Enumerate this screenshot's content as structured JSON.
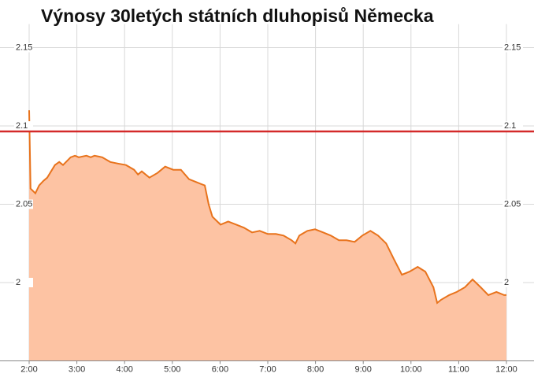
{
  "chart_data": {
    "type": "area",
    "title": "Výnosy 30letých státních dluhopisů Německa",
    "x": [
      2.0,
      2.03,
      2.13,
      2.21,
      2.3,
      2.38,
      2.54,
      2.63,
      2.71,
      2.87,
      2.96,
      3.04,
      3.2,
      3.29,
      3.37,
      3.53,
      3.7,
      3.86,
      4.03,
      4.2,
      4.28,
      4.36,
      4.52,
      4.69,
      4.85,
      5.02,
      5.18,
      5.35,
      5.51,
      5.68,
      5.76,
      5.84,
      6.01,
      6.17,
      6.34,
      6.5,
      6.67,
      6.83,
      7.0,
      7.17,
      7.33,
      7.5,
      7.58,
      7.66,
      7.83,
      7.99,
      8.16,
      8.32,
      8.49,
      8.65,
      8.82,
      8.98,
      9.15,
      9.31,
      9.48,
      9.64,
      9.81,
      9.97,
      10.14,
      10.3,
      10.47,
      10.55,
      10.63,
      10.8,
      10.96,
      11.13,
      11.29,
      11.46,
      11.62,
      11.79,
      11.95,
      12.0
    ],
    "series": [
      {
        "color": "#e8731c",
        "fill": "#fdc3a3",
        "values": [
          2.11,
          2.06,
          2.057,
          2.062,
          2.065,
          2.067,
          2.075,
          2.077,
          2.075,
          2.08,
          2.081,
          2.08,
          2.081,
          2.08,
          2.081,
          2.08,
          2.077,
          2.076,
          2.075,
          2.072,
          2.069,
          2.071,
          2.067,
          2.07,
          2.074,
          2.072,
          2.072,
          2.066,
          2.064,
          2.062,
          2.05,
          2.042,
          2.037,
          2.039,
          2.037,
          2.035,
          2.032,
          2.033,
          2.031,
          2.031,
          2.03,
          2.027,
          2.025,
          2.03,
          2.033,
          2.034,
          2.032,
          2.03,
          2.027,
          2.027,
          2.026,
          2.03,
          2.033,
          2.03,
          2.025,
          2.015,
          2.005,
          2.007,
          2.01,
          2.007,
          1.997,
          1.987,
          1.989,
          1.992,
          1.994,
          1.997,
          2.002,
          1.997,
          1.992,
          1.994,
          1.992,
          1.992
        ]
      }
    ],
    "reference_lines": [
      {
        "value": 2.0965,
        "color": "#d42a2a"
      }
    ],
    "xlim": [
      2,
      12
    ],
    "xticks": [
      {
        "value": 2,
        "label": "2:00"
      },
      {
        "value": 3,
        "label": "3:00"
      },
      {
        "value": 4,
        "label": "4:00"
      },
      {
        "value": 5,
        "label": "5:00"
      },
      {
        "value": 6,
        "label": "6:00"
      },
      {
        "value": 7,
        "label": "7:00"
      },
      {
        "value": 8,
        "label": "8:00"
      },
      {
        "value": 9,
        "label": "9:00"
      },
      {
        "value": 10,
        "label": "10:00"
      },
      {
        "value": 11,
        "label": "11:00"
      },
      {
        "value": 12,
        "label": "12:00"
      }
    ],
    "ylim": [
      1.95,
      2.16
    ],
    "yticks": [
      2,
      2.05,
      2.1,
      2.15
    ],
    "grid": true
  }
}
